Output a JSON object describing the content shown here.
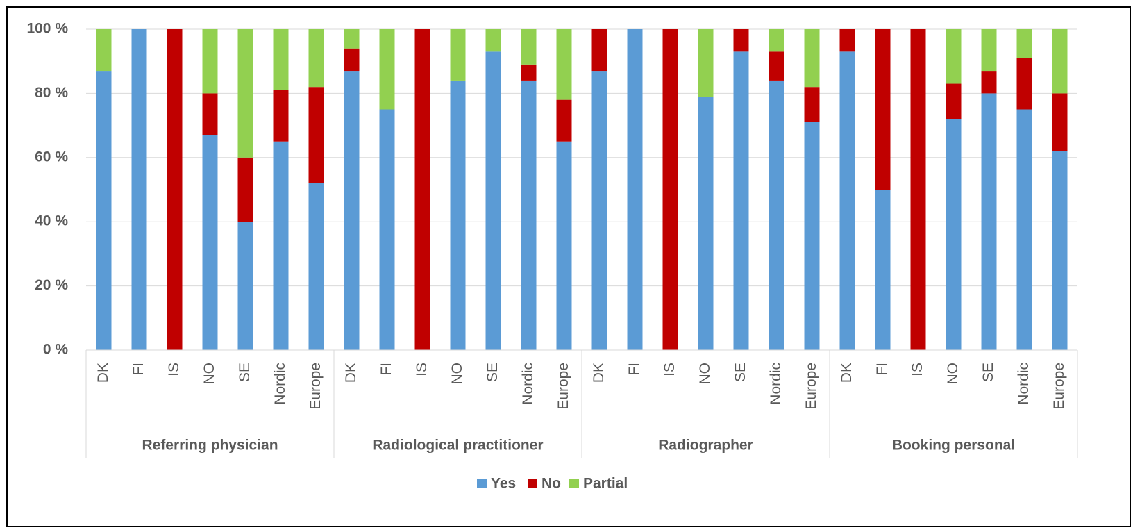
{
  "chart_data": {
    "type": "stacked-bar",
    "groups": [
      {
        "label": "Referring physician",
        "categories": [
          "DK",
          "FI",
          "IS",
          "NO",
          "SE",
          "Nordic",
          "Europe"
        ]
      },
      {
        "label": "Radiological practitioner",
        "categories": [
          "DK",
          "FI",
          "IS",
          "NO",
          "SE",
          "Nordic",
          "Europe"
        ]
      },
      {
        "label": "Radiographer",
        "categories": [
          "DK",
          "FI",
          "IS",
          "NO",
          "SE",
          "Nordic",
          "Europe"
        ]
      },
      {
        "label": "Booking personal",
        "categories": [
          "DK",
          "FI",
          "IS",
          "NO",
          "SE",
          "Nordic",
          "Europe"
        ]
      }
    ],
    "series": [
      {
        "name": "Yes",
        "color": "#5b9bd5",
        "values": [
          87,
          100,
          0,
          67,
          40,
          65,
          52,
          87,
          75,
          0,
          84,
          93,
          84,
          65,
          87,
          100,
          0,
          79,
          93,
          84,
          71,
          93,
          50,
          0,
          72,
          80,
          75,
          62
        ]
      },
      {
        "name": "No",
        "color": "#c00000",
        "values": [
          0,
          0,
          100,
          13,
          20,
          16,
          30,
          7,
          0,
          100,
          0,
          0,
          5,
          13,
          13,
          0,
          100,
          0,
          7,
          9,
          11,
          7,
          50,
          100,
          11,
          7,
          16,
          18
        ]
      },
      {
        "name": "Partial",
        "color": "#92d050",
        "values": [
          13,
          0,
          0,
          20,
          40,
          19,
          18,
          6,
          25,
          0,
          16,
          7,
          11,
          22,
          0,
          0,
          0,
          21,
          0,
          7,
          18,
          0,
          0,
          0,
          17,
          13,
          9,
          20
        ]
      }
    ],
    "ylim": [
      0,
      100
    ],
    "yticks": [
      {
        "value": 0,
        "label": "0 %"
      },
      {
        "value": 20,
        "label": "20 %"
      },
      {
        "value": 40,
        "label": "40 %"
      },
      {
        "value": 60,
        "label": "60 %"
      },
      {
        "value": 80,
        "label": "80 %"
      },
      {
        "value": 100,
        "label": "100 %"
      }
    ],
    "grid": true,
    "legend": "bottom"
  }
}
